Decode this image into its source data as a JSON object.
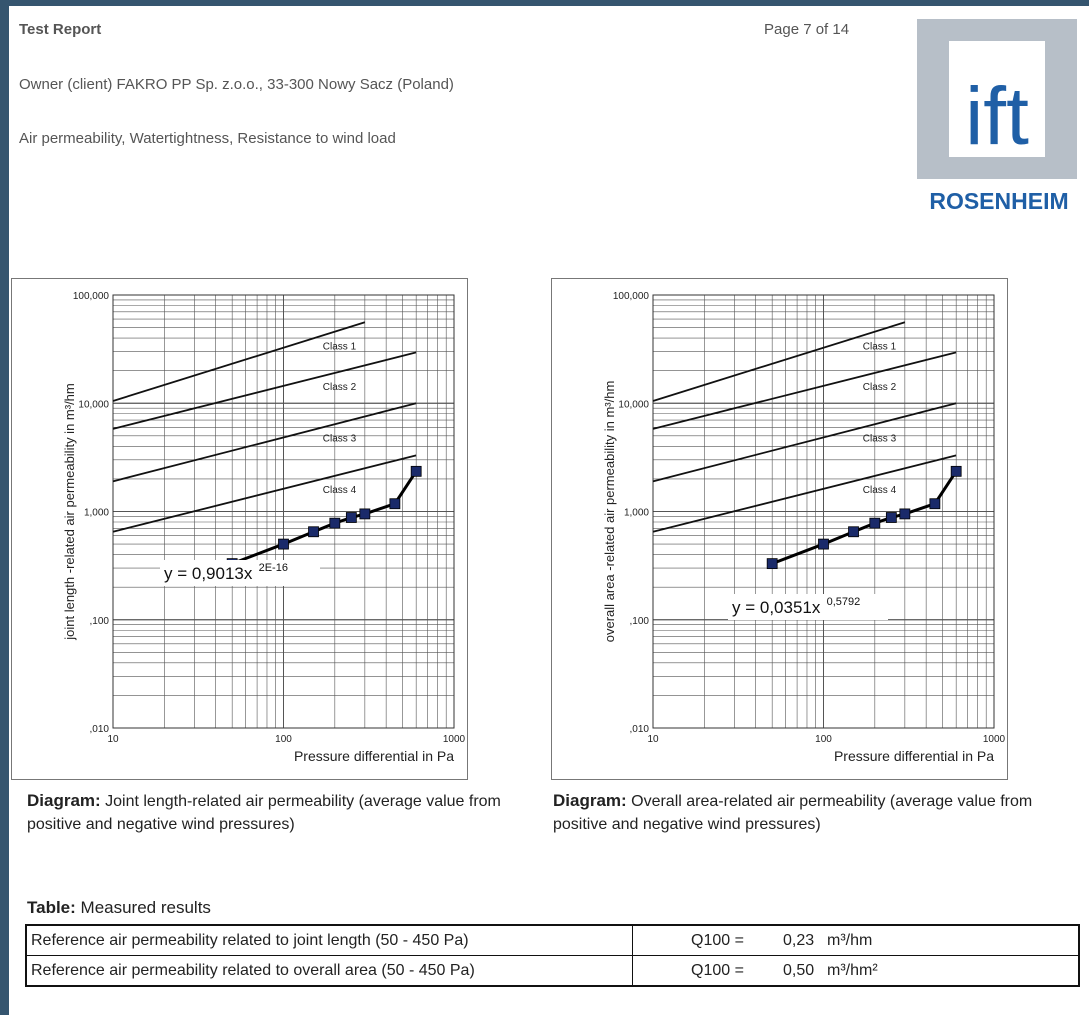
{
  "header": {
    "title": "Test Report",
    "page": "Page 7 of 14",
    "owner": "Owner (client)   FAKRO PP Sp. z.o.o., 33-300 Nowy Sacz (Poland)",
    "tests": "Air permeability, Watertightness, Resistance to wind load"
  },
  "logo": {
    "text": "ift",
    "sub": "ROSENHEIM",
    "color": "#1f5fa6",
    "grey": "#b7bfc8"
  },
  "chart_data": [
    {
      "type": "line",
      "xscale": "log",
      "yscale": "log",
      "xlim": [
        10,
        1000
      ],
      "ylim": [
        0.01,
        100
      ],
      "xticks": [
        "10",
        "100",
        "1000"
      ],
      "yticks": [
        "100,000",
        "10,000",
        "1,000",
        ",100",
        ",010"
      ],
      "xlabel": "Pressure differential in Pa",
      "ylabel": "joint length -related air permeability in m³/hm",
      "classes": [
        {
          "name": "Class 1",
          "x": [
            10,
            300
          ],
          "y": [
            10.5,
            56
          ]
        },
        {
          "name": "Class 2",
          "x": [
            10,
            600
          ],
          "y": [
            5.8,
            29.5
          ]
        },
        {
          "name": "Class 3",
          "x": [
            10,
            600
          ],
          "y": [
            1.9,
            10
          ]
        },
        {
          "name": "Class 4",
          "x": [
            10,
            600
          ],
          "y": [
            0.65,
            3.3
          ]
        }
      ],
      "series": [
        {
          "x": [
            50,
            100,
            150,
            200,
            250,
            300,
            450,
            600
          ],
          "y": [
            0.33,
            0.5,
            0.65,
            0.78,
            0.88,
            0.95,
            1.18,
            2.35
          ]
        }
      ],
      "equation": "y = 0,9013x",
      "exponent": "2E-16"
    },
    {
      "type": "line",
      "xscale": "log",
      "yscale": "log",
      "xlim": [
        10,
        1000
      ],
      "ylim": [
        0.01,
        100
      ],
      "xticks": [
        "10",
        "100",
        "1000"
      ],
      "yticks": [
        "100,000",
        "10,000",
        "1,000",
        ",100",
        ",010"
      ],
      "xlabel": "Pressure differential in Pa",
      "ylabel": "overall area -related air permeability in m³/hm",
      "classes": [
        {
          "name": "Class 1",
          "x": [
            10,
            300
          ],
          "y": [
            10.5,
            56
          ]
        },
        {
          "name": "Class 2",
          "x": [
            10,
            600
          ],
          "y": [
            5.8,
            29.5
          ]
        },
        {
          "name": "Class 3",
          "x": [
            10,
            600
          ],
          "y": [
            1.9,
            10
          ]
        },
        {
          "name": "Class 4",
          "x": [
            10,
            600
          ],
          "y": [
            0.65,
            3.3
          ]
        }
      ],
      "series": [
        {
          "x": [
            50,
            100,
            150,
            200,
            250,
            300,
            450,
            600
          ],
          "y": [
            0.33,
            0.5,
            0.65,
            0.78,
            0.88,
            0.95,
            1.18,
            2.35
          ]
        }
      ],
      "equation": "y = 0,0351x",
      "exponent": "0,5792"
    }
  ],
  "captions": [
    {
      "bold": "Diagram:",
      "text": " Joint length-related air permeability (average value from positive and negative wind pressures)"
    },
    {
      "bold": "Diagram:",
      "text": " Overall area-related air permeability (average value from positive and negative wind pressures)"
    }
  ],
  "table": {
    "title_bold": "Table:",
    "title": " Measured results",
    "rows": [
      {
        "label": "Reference air permeability related to joint length (50 - 450 Pa)",
        "prefix": "Q100 =",
        "value": "0,23",
        "unit": "m³/hm"
      },
      {
        "label": "Reference air permeability related to overall area (50 - 450 Pa)",
        "prefix": "Q100 =",
        "value": "0,50",
        "unit": "m³/hm²"
      }
    ]
  }
}
